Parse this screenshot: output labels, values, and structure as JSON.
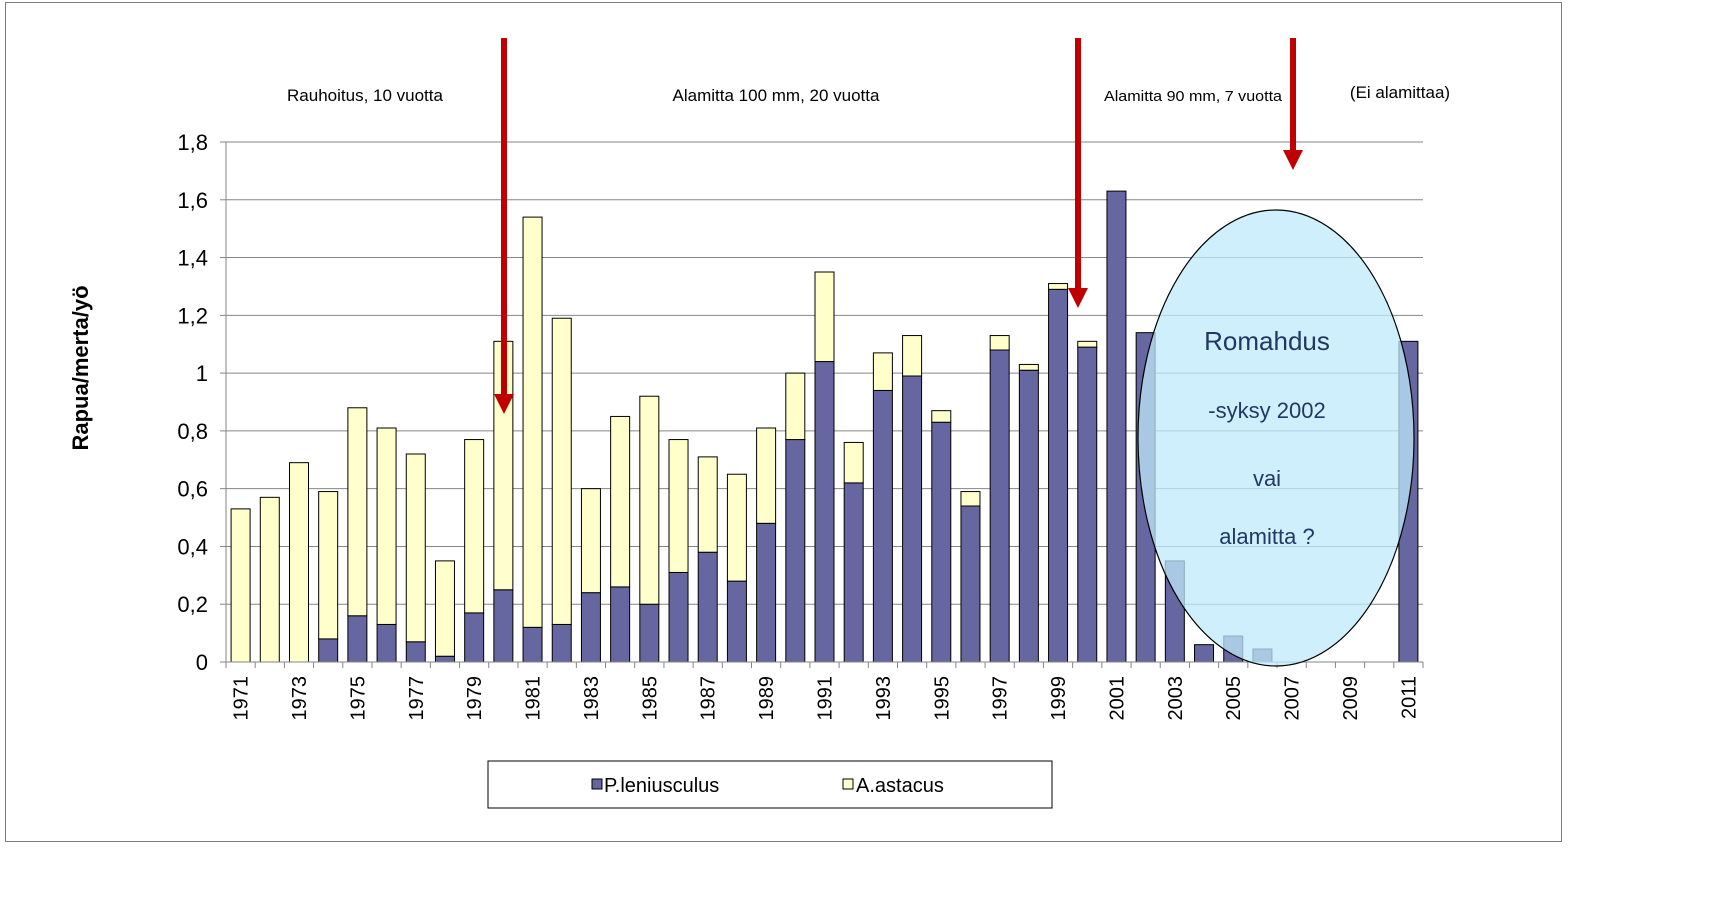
{
  "chart_data": {
    "type": "bar",
    "stacked": true,
    "ylabel": "Rapua/merta/yö",
    "ylim": [
      0,
      1.8
    ],
    "yticks": [
      "0",
      "0,2",
      "0,4",
      "0,6",
      "0,8",
      "1",
      "1,2",
      "1,4",
      "1,6",
      "1,8"
    ],
    "grid": true,
    "years": [
      1971,
      1972,
      1973,
      1974,
      1975,
      1976,
      1977,
      1978,
      1979,
      1980,
      1981,
      1982,
      1983,
      1984,
      1985,
      1986,
      1987,
      1988,
      1989,
      1990,
      1991,
      1992,
      1993,
      1994,
      1995,
      1996,
      1997,
      1998,
      1999,
      2000,
      2001,
      2002,
      2003,
      2004,
      2005,
      2006,
      2007,
      2008,
      2009,
      2010,
      2011
    ],
    "xtick_labels": [
      "1971",
      "1973",
      "1975",
      "1977",
      "1979",
      "1981",
      "1983",
      "1985",
      "1987",
      "1989",
      "1991",
      "1993",
      "1995",
      "1997",
      "1999",
      "2001",
      "2003",
      "2005",
      "2007",
      "2009",
      "2011"
    ],
    "series": [
      {
        "name": "P.leniusculus",
        "color": "#6666a0",
        "values": [
          0,
          0,
          0,
          0.08,
          0.16,
          0.13,
          0.07,
          0.02,
          0.17,
          0.25,
          0.12,
          0.13,
          0.24,
          0.26,
          0.2,
          0.31,
          0.38,
          0.28,
          0.48,
          0.77,
          1.04,
          0.62,
          0.94,
          0.99,
          0.83,
          0.54,
          1.08,
          1.01,
          1.29,
          1.09,
          1.63,
          1.14,
          0.35,
          0.06,
          0.09,
          0.045,
          0,
          0,
          0,
          0,
          1.11
        ]
      },
      {
        "name": "A.astacus",
        "color": "#ffffcc",
        "values": [
          0.53,
          0.57,
          0.69,
          0.51,
          0.72,
          0.68,
          0.65,
          0.33,
          0.6,
          0.86,
          1.42,
          1.06,
          0.36,
          0.59,
          0.72,
          0.46,
          0.33,
          0.37,
          0.33,
          0.23,
          0.31,
          0.14,
          0.13,
          0.14,
          0.04,
          0.05,
          0.05,
          0.02,
          0.02,
          0.02,
          0,
          0,
          0,
          0,
          0,
          0,
          0,
          0,
          0,
          0,
          0
        ]
      }
    ],
    "legend": {
      "placement": "bottom",
      "entries": [
        "P.leniusculus",
        "A.astacus"
      ]
    }
  },
  "annotations": {
    "periods": [
      "Rauhoitus, 10 vuotta",
      "Alamitta 100 mm, 20 vuotta",
      "Alamitta 90 mm, 7 vuotta",
      "(Ei alamittaa)"
    ],
    "ellipse_lines": [
      "Romahdus",
      "-syksy 2002",
      "vai",
      "alamitta ?"
    ],
    "arrow_color": "#c00000",
    "ellipse_fill": "#bfe9fb",
    "ellipse_text_color": "#1f3864"
  }
}
